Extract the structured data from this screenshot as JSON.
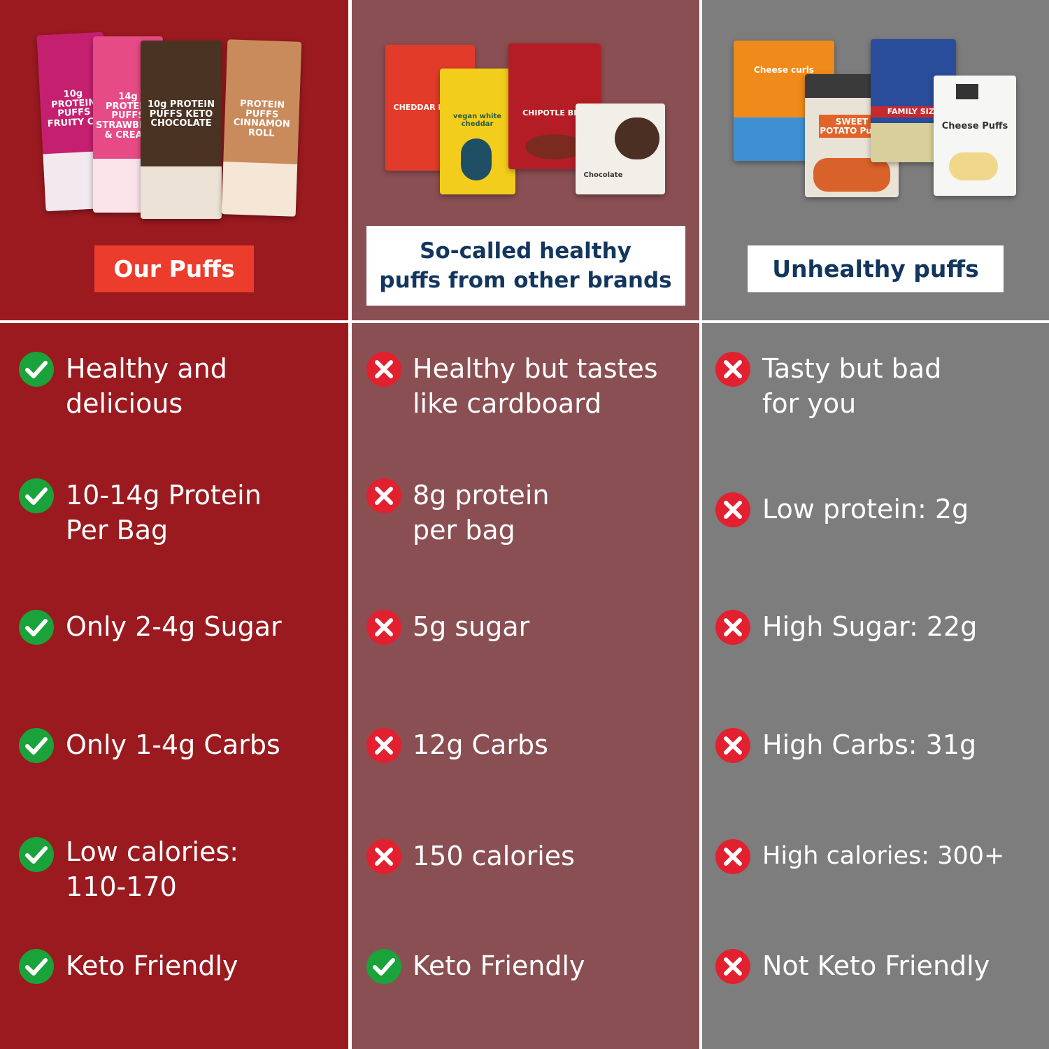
{
  "colors": {
    "ours": "#9a1a1f",
    "others": "#8a4f53",
    "unhealthy": "#7d7d7d",
    "check": "#1aa33a",
    "cross": "#e2202f",
    "label_red": "#ec3c2c",
    "label_navy": "#13365e"
  },
  "columns": [
    {
      "label": "Our Puffs",
      "products": [
        "10g PROTEIN PUFFS FRUITY CH",
        "14g PROTEIN PUFFS STRAWBERRY & CREAM",
        "10g PROTEIN PUFFS KETO CHOCOLATE",
        "PROTEIN PUFFS CINNAMON ROLL"
      ],
      "rows": [
        {
          "icon": "check-icon",
          "text": "Healthy and\ndelicious"
        },
        {
          "icon": "check-icon",
          "text": "10-14g Protein\nPer Bag"
        },
        {
          "icon": "check-icon",
          "text": "Only 2-4g Sugar"
        },
        {
          "icon": "check-icon",
          "text": "Only 1-4g Carbs"
        },
        {
          "icon": "check-icon",
          "text": "Low calories:\n110-170"
        },
        {
          "icon": "check-icon",
          "text": "Keto Friendly"
        }
      ]
    },
    {
      "label": "So-called healthy\npuffs from other brands",
      "products": [
        "CHEDDAR BLAST",
        "vegan white cheddar",
        "CHIPOTLE BBQ",
        "Chocolate"
      ],
      "rows": [
        {
          "icon": "cross-icon",
          "text": "Healthy but tastes\nlike cardboard"
        },
        {
          "icon": "cross-icon",
          "text": "8g protein\nper bag"
        },
        {
          "icon": "cross-icon",
          "text": "5g sugar"
        },
        {
          "icon": "cross-icon",
          "text": "12g Carbs"
        },
        {
          "icon": "cross-icon",
          "text": "150 calories"
        },
        {
          "icon": "check-icon",
          "text": "Keto Friendly"
        }
      ]
    },
    {
      "label": "Unhealthy puffs",
      "products": [
        "Cheese curls",
        "SWEET POTATO Puffs",
        "FAMILY SIZE",
        "Cheese Puffs"
      ],
      "rows": [
        {
          "icon": "cross-icon",
          "text": "Tasty but bad\nfor you"
        },
        {
          "icon": "cross-icon",
          "text": "Low protein: 2g"
        },
        {
          "icon": "cross-icon",
          "text": "High Sugar: 22g"
        },
        {
          "icon": "cross-icon",
          "text": "High Carbs: 31g"
        },
        {
          "icon": "cross-icon",
          "text": "High calories: 300+"
        },
        {
          "icon": "cross-icon",
          "text": "Not Keto Friendly"
        }
      ]
    }
  ]
}
